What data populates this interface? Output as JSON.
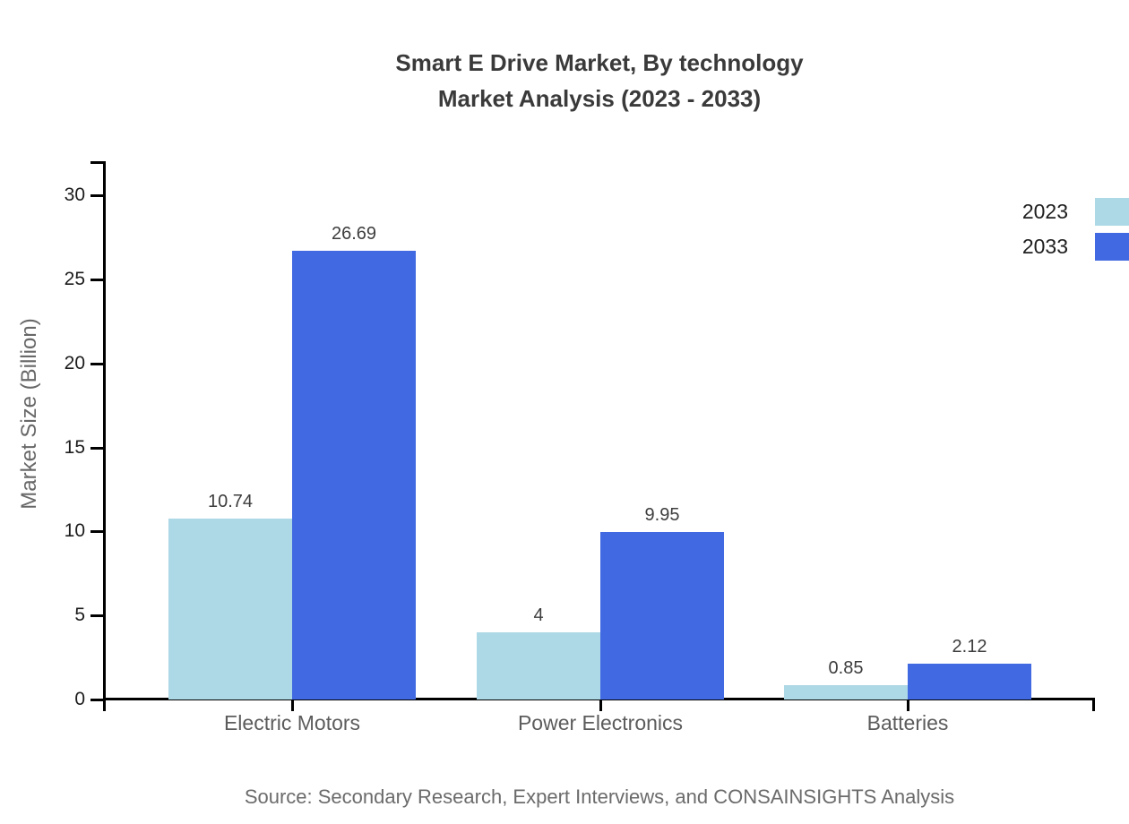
{
  "title": {
    "line1": "Smart E Drive Market, By technology",
    "line2": "Market Analysis (2023 - 2033)"
  },
  "source": "Source: Secondary Research, Expert Interviews, and CONSAINSIGHTS Analysis",
  "legend": {
    "items": [
      {
        "label": "2023",
        "color": "#ADD8E6"
      },
      {
        "label": "2033",
        "color": "#4169E1"
      }
    ]
  },
  "chart_data": {
    "type": "bar",
    "title": "Smart E Drive Market, By technology Market Analysis (2023 - 2033)",
    "categories": [
      "Electric Motors",
      "Power Electronics",
      "Batteries"
    ],
    "series": [
      {
        "name": "2023",
        "color": "#ADD8E6",
        "values": [
          10.74,
          4,
          0.85
        ]
      },
      {
        "name": "2033",
        "color": "#4169E1",
        "values": [
          26.69,
          9.95,
          2.12
        ]
      }
    ],
    "xlabel": "",
    "ylabel": "Market Size (Billion)",
    "ylim": [
      0,
      30
    ],
    "yticks": [
      0,
      5,
      10,
      15,
      20,
      25,
      30
    ],
    "grid": false,
    "value_labels": true,
    "legend_position": "top-right",
    "axis_color": "#000000",
    "text_color": "#3d3d3d"
  }
}
